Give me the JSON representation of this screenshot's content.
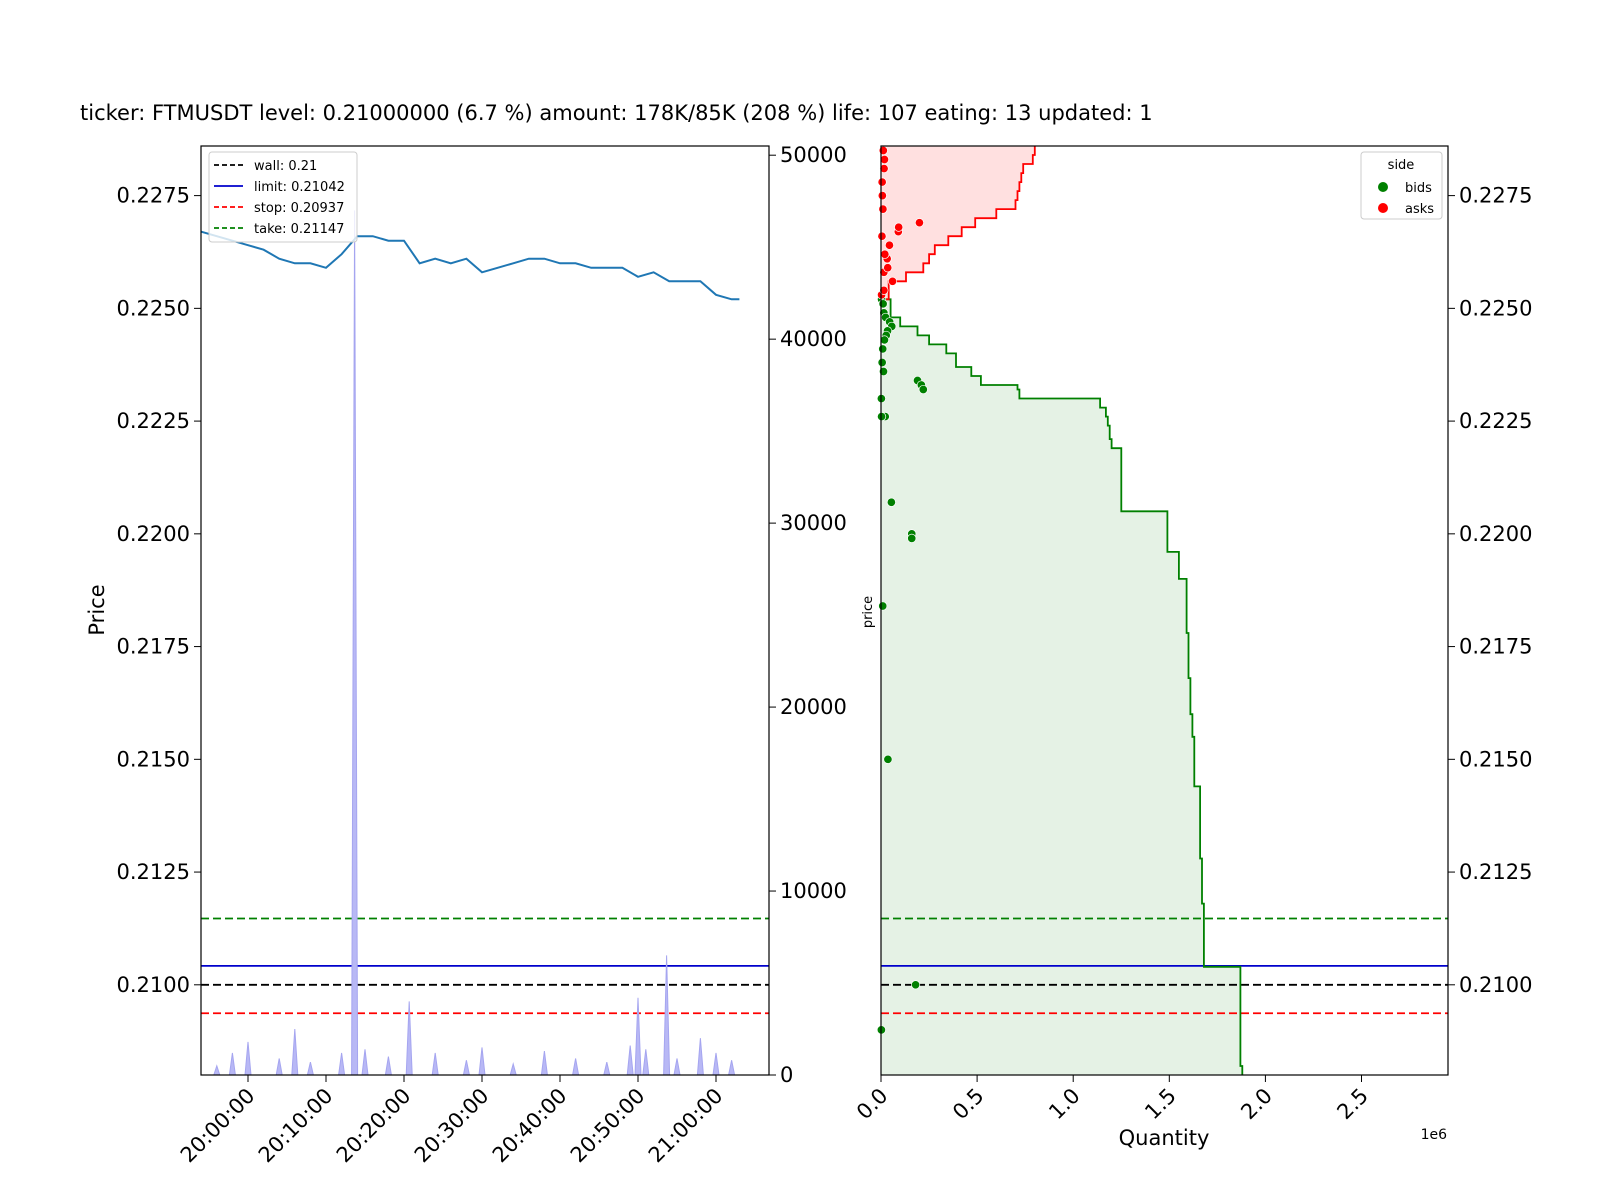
{
  "chart_data": [
    {
      "type": "line",
      "title": "ticker: FTMUSDT level: 0.21000000 (6.7 %) amount: 178K/85K (208 %)  life: 107 eating: 13 updated: 1",
      "ylabel": "Price",
      "ylim": [
        0.208,
        0.2286
      ],
      "y2lim": [
        0,
        50500
      ],
      "x_tick_labels": [
        "20:00:00",
        "20:10:00",
        "20:20:00",
        "20:30:00",
        "20:40:00",
        "20:50:00",
        "21:00:00"
      ],
      "y_tick_labels": [
        "0.2100",
        "0.2125",
        "0.2150",
        "0.2175",
        "0.2200",
        "0.2225",
        "0.2250",
        "0.2275"
      ],
      "y2_tick_labels": [
        "0",
        "10000",
        "20000",
        "30000",
        "40000",
        "50000"
      ],
      "price_series": {
        "x": [
          "19:54:00",
          "19:56:00",
          "19:58:00",
          "20:00:00",
          "20:02:00",
          "20:04:00",
          "20:06:00",
          "20:08:00",
          "20:10:00",
          "20:12:00",
          "20:14:00",
          "20:16:00",
          "20:18:00",
          "20:20:00",
          "20:22:00",
          "20:24:00",
          "20:26:00",
          "20:28:00",
          "20:30:00",
          "20:32:00",
          "20:34:00",
          "20:36:00",
          "20:38:00",
          "20:40:00",
          "20:42:00",
          "20:44:00",
          "20:46:00",
          "20:48:00",
          "20:50:00",
          "20:52:00",
          "20:54:00",
          "20:56:00",
          "20:58:00",
          "21:00:00",
          "21:02:00",
          "21:03:00"
        ],
        "values": [
          0.2267,
          0.2266,
          0.2265,
          0.2264,
          0.2263,
          0.2261,
          0.226,
          0.226,
          0.2259,
          0.2262,
          0.2266,
          0.2266,
          0.2265,
          0.2265,
          0.226,
          0.2261,
          0.226,
          0.2261,
          0.2258,
          0.2259,
          0.226,
          0.2261,
          0.2261,
          0.226,
          0.226,
          0.2259,
          0.2259,
          0.2259,
          0.2257,
          0.2258,
          0.2256,
          0.2256,
          0.2256,
          0.2253,
          0.2252,
          0.2252
        ]
      },
      "volume_series": {
        "x": [
          "19:56:00",
          "19:58:00",
          "20:00:00",
          "20:04:00",
          "20:06:00",
          "20:08:00",
          "20:12:00",
          "20:13:40",
          "20:15:00",
          "20:18:00",
          "20:20:40",
          "20:24:00",
          "20:28:00",
          "20:30:00",
          "20:34:00",
          "20:38:00",
          "20:42:00",
          "20:46:00",
          "20:49:00",
          "20:50:00",
          "20:51:00",
          "20:53:40",
          "20:55:00",
          "20:58:00",
          "21:00:00",
          "21:02:00"
        ],
        "values": [
          500,
          1200,
          1800,
          900,
          2500,
          700,
          1200,
          47000,
          1400,
          1000,
          4000,
          1200,
          800,
          1500,
          600,
          1300,
          900,
          700,
          1600,
          4200,
          1400,
          6500,
          900,
          2000,
          1200,
          800
        ]
      },
      "hlines": [
        {
          "name": "wall: 0.21",
          "value": 0.21,
          "color": "#000000",
          "style": "dashed"
        },
        {
          "name": "limit: 0.21042",
          "value": 0.21042,
          "color": "#0000cc",
          "style": "solid"
        },
        {
          "name": "stop: 0.20937",
          "value": 0.20937,
          "color": "#ff0000",
          "style": "dashed"
        },
        {
          "name": "take: 0.21147",
          "value": 0.21147,
          "color": "#008000",
          "style": "dashed"
        }
      ],
      "legend": "top-left"
    },
    {
      "type": "area",
      "xlabel": "Quantity",
      "ylabel": "price",
      "x_multiplier": "1e6",
      "xlim": [
        0,
        2.95
      ],
      "ylim": [
        0.208,
        0.2286
      ],
      "x_tick_labels": [
        "0.0",
        "0.5",
        "1.0",
        "1.5",
        "2.0",
        "2.5"
      ],
      "y_tick_labels": [
        "0.2100",
        "0.2125",
        "0.2150",
        "0.2175",
        "0.2200",
        "0.2225",
        "0.2250",
        "0.2275"
      ],
      "legend_title": "side",
      "legend": "top-right",
      "series": [
        {
          "name": "bids",
          "color": "#008000",
          "cumulative_steps": {
            "price": [
              0.2252,
              0.2248,
              0.2246,
              0.2244,
              0.2242,
              0.224,
              0.2237,
              0.2235,
              0.2233,
              0.2232,
              0.223,
              0.2228,
              0.2226,
              0.2224,
              0.2221,
              0.2219,
              0.2212,
              0.2211,
              0.2208,
              0.2205,
              0.2196,
              0.219,
              0.2178,
              0.2168,
              0.216,
              0.2155,
              0.2144,
              0.2128,
              0.2118,
              0.2104,
              0.21,
              0.2097,
              0.2082,
              0.208
            ],
            "quantity": [
              0.01,
              0.05,
              0.1,
              0.19,
              0.25,
              0.34,
              0.39,
              0.47,
              0.52,
              0.71,
              0.72,
              1.14,
              1.17,
              1.18,
              1.19,
              1.2,
              1.25,
              1.25,
              1.25,
              1.25,
              1.49,
              1.55,
              1.59,
              1.6,
              1.61,
              1.62,
              1.63,
              1.66,
              1.67,
              1.68,
              1.87,
              1.87,
              1.87,
              1.88
            ]
          },
          "orders": {
            "price": [
              0.2252,
              0.2251,
              0.2249,
              0.2248,
              0.2247,
              0.2246,
              0.2245,
              0.2244,
              0.2243,
              0.2241,
              0.2238,
              0.2236,
              0.2234,
              0.2233,
              0.2232,
              0.2226,
              0.2226,
              0.2207,
              0.22,
              0.2199,
              0.2184,
              0.215,
              0.21,
              0.223,
              0.209
            ],
            "quantity": [
              0.003,
              0.011,
              0.015,
              0.024,
              0.045,
              0.056,
              0.034,
              0.027,
              0.018,
              0.009,
              0.006,
              0.013,
              0.19,
              0.21,
              0.22,
              0.022,
              0.003,
              0.054,
              0.16,
              0.16,
              0.009,
              0.036,
              0.18,
              0.002,
              0.002
            ]
          }
        },
        {
          "name": "asks",
          "color": "#ff0000",
          "cumulative_steps": {
            "price": [
              0.2252,
              0.2256,
              0.2258,
              0.226,
              0.2262,
              0.2264,
              0.2266,
              0.2268,
              0.227,
              0.2272,
              0.2274,
              0.2276,
              0.2278,
              0.228,
              0.2282,
              0.2284,
              0.2286
            ],
            "quantity": [
              0.01,
              0.04,
              0.13,
              0.22,
              0.25,
              0.28,
              0.35,
              0.42,
              0.49,
              0.6,
              0.7,
              0.71,
              0.72,
              0.73,
              0.74,
              0.79,
              0.8
            ]
          },
          "orders": {
            "price": [
              0.2253,
              0.2254,
              0.2256,
              0.2258,
              0.2259,
              0.2261,
              0.2262,
              0.2264,
              0.2266,
              0.2267,
              0.2268,
              0.2269,
              0.2272,
              0.2275,
              0.2278,
              0.2281,
              0.2283,
              0.2285
            ],
            "quantity": [
              0.003,
              0.015,
              0.06,
              0.015,
              0.035,
              0.032,
              0.02,
              0.044,
              0.005,
              0.09,
              0.092,
              0.2,
              0.01,
              0.007,
              0.006,
              0.016,
              0.018,
              0.012
            ]
          }
        }
      ]
    }
  ]
}
